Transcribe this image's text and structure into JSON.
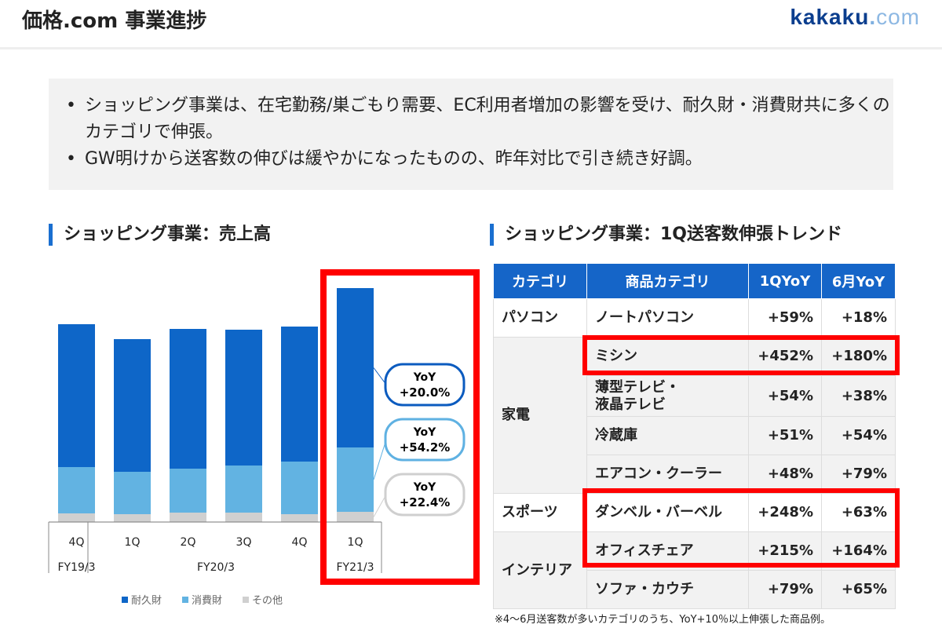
{
  "header": {
    "title": "価格.com 事業進捗",
    "logo_main": "kakaku",
    "logo_dot": ".",
    "logo_com": "com"
  },
  "summary": [
    "ショッピング事業は、在宅勤務/巣ごもり需要、EC利用者増加の影響を受け、耐久財・消費財共に多くのカテゴリで伸張。",
    "GW明けから送客数の伸びは緩やかになったものの、昨年対比で引き続き好調。"
  ],
  "left_section": {
    "title": "ショッピング事業：売上高"
  },
  "right_section": {
    "title": "ショッピング事業：1Q送客数伸張トレンド"
  },
  "chart_data": {
    "type": "bar",
    "stacked": true,
    "title": "ショッピング事業：売上高",
    "categories": [
      "4Q",
      "1Q",
      "2Q",
      "3Q",
      "4Q",
      "1Q"
    ],
    "groups": [
      {
        "label": "FY19/3",
        "span": 1
      },
      {
        "label": "FY20/3",
        "span": 4
      },
      {
        "label": "FY21/3",
        "span": 1
      }
    ],
    "series": [
      {
        "name": "その他",
        "color": "#d0d0d0",
        "values": [
          11,
          10,
          12,
          12,
          10,
          13
        ]
      },
      {
        "name": "消費財",
        "color": "#62b3e2",
        "values": [
          59,
          54,
          56,
          60,
          67,
          82
        ]
      },
      {
        "name": "耐久財",
        "color": "#0e66c8",
        "values": [
          182,
          169,
          178,
          173,
          172,
          203
        ]
      }
    ],
    "legend_order": [
      "耐久財",
      "消費財",
      "その他"
    ],
    "legend": "bottom",
    "annotations": [
      {
        "label": "YoY",
        "value": "+20.0%",
        "series": "耐久財",
        "color": "#0b5bbf"
      },
      {
        "label": "YoY",
        "value": "+54.2%",
        "series": "消費財",
        "color": "#5fb1e2"
      },
      {
        "label": "YoY",
        "value": "+22.4%",
        "series": "その他",
        "color": "#cfcfcf"
      }
    ],
    "ylabel": "",
    "xlabel": "",
    "units": "relative (no axis shown)"
  },
  "table": {
    "headers": [
      "カテゴリ",
      "商品カテゴリ",
      "1QYoY",
      "6月YoY"
    ],
    "groups": [
      {
        "category": "パソコン",
        "rows": [
          [
            "ノートパソコン",
            "+59%",
            "+18%"
          ]
        ]
      },
      {
        "category": "家電",
        "rows": [
          [
            "ミシン",
            "+452%",
            "+180%"
          ],
          [
            "薄型テレビ・\n液晶テレビ",
            "+54%",
            "+38%"
          ],
          [
            "冷蔵庫",
            "+51%",
            "+54%"
          ],
          [
            "エアコン・クーラー",
            "+48%",
            "+79%"
          ]
        ]
      },
      {
        "category": "スポーツ",
        "rows": [
          [
            "ダンベル・バーベル",
            "+248%",
            "+63%"
          ]
        ]
      },
      {
        "category": "インテリア",
        "rows": [
          [
            "オフィスチェア",
            "+215%",
            "+164%"
          ],
          [
            "ソファ・カウチ",
            "+79%",
            "+65%"
          ]
        ]
      }
    ],
    "note": "※4～6月送客数が多いカテゴリのうち、YoY+10％以上伸張した商品例。"
  },
  "colors": {
    "accent": "#1565c8",
    "highlight": "#ff0000"
  }
}
